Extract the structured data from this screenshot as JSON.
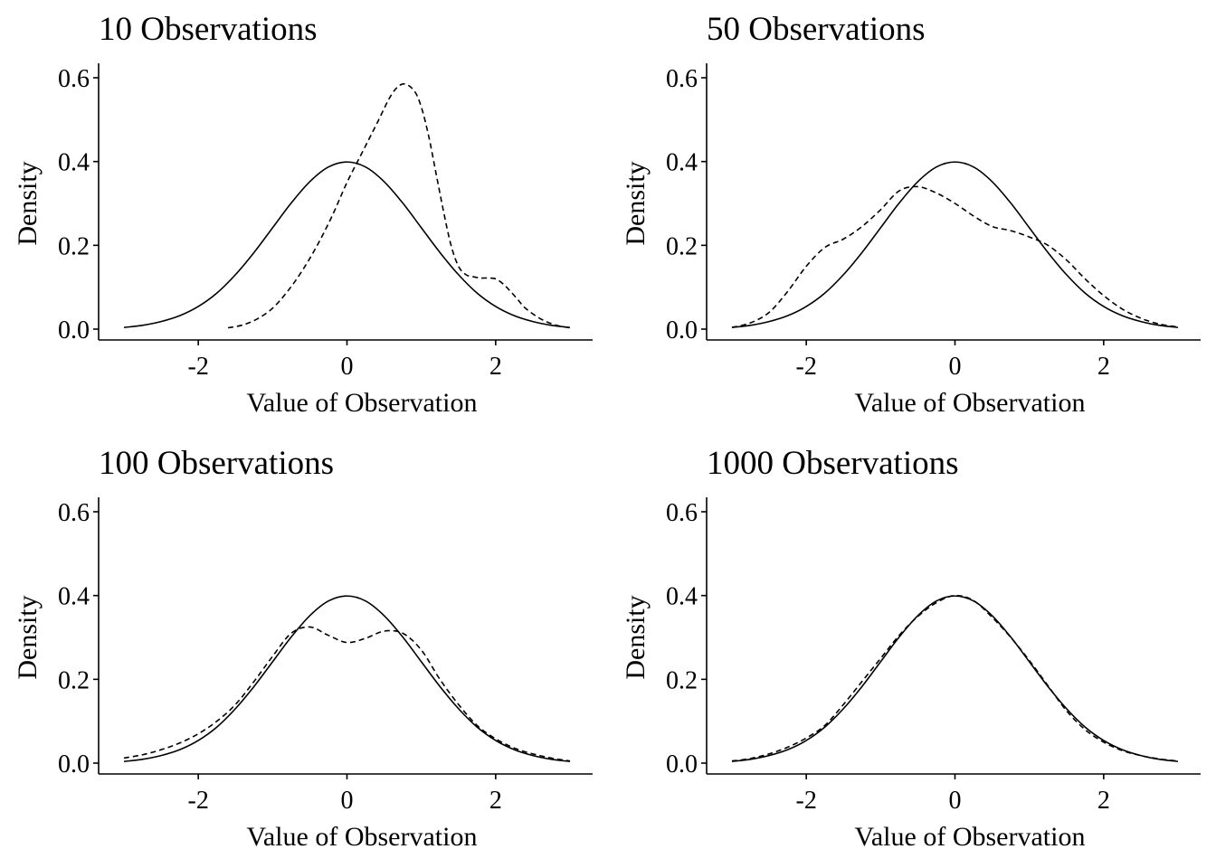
{
  "chart_data": [
    {
      "type": "line",
      "title": "10 Observations",
      "xlabel": "Value of Observation",
      "ylabel": "Density",
      "xlim": [
        -3,
        3
      ],
      "ylim": [
        0,
        0.6
      ],
      "xticks": [
        "-2",
        "0",
        "2"
      ],
      "yticks": [
        "0.0",
        "0.2",
        "0.4",
        "0.6"
      ],
      "grid": false,
      "series": [
        {
          "style": "solid",
          "x": [
            -3,
            -2.75,
            -2.5,
            -2.25,
            -2,
            -1.75,
            -1.5,
            -1.25,
            -1,
            -0.75,
            -0.5,
            -0.25,
            0,
            0.25,
            0.5,
            0.75,
            1,
            1.25,
            1.5,
            1.75,
            2,
            2.25,
            2.5,
            2.75,
            3
          ],
          "y": [
            0.004,
            0.009,
            0.018,
            0.032,
            0.054,
            0.086,
            0.13,
            0.183,
            0.242,
            0.301,
            0.352,
            0.387,
            0.399,
            0.387,
            0.352,
            0.301,
            0.242,
            0.183,
            0.13,
            0.086,
            0.054,
            0.032,
            0.018,
            0.009,
            0.004
          ]
        },
        {
          "style": "dashed",
          "x": [
            -1.6,
            -1.4,
            -1.2,
            -1,
            -0.8,
            -0.6,
            -0.4,
            -0.2,
            0,
            0.2,
            0.4,
            0.6,
            0.75,
            0.9,
            1,
            1.1,
            1.2,
            1.3,
            1.4,
            1.5,
            1.6,
            1.7,
            1.8,
            1.9,
            2,
            2.1,
            2.2,
            2.3,
            2.4,
            2.6,
            2.8,
            3
          ],
          "y": [
            0.003,
            0.01,
            0.025,
            0.05,
            0.09,
            0.14,
            0.2,
            0.27,
            0.35,
            0.42,
            0.49,
            0.56,
            0.585,
            0.57,
            0.53,
            0.46,
            0.37,
            0.28,
            0.2,
            0.15,
            0.13,
            0.125,
            0.122,
            0.122,
            0.12,
            0.108,
            0.09,
            0.07,
            0.05,
            0.025,
            0.01,
            0.003
          ]
        }
      ]
    },
    {
      "type": "line",
      "title": "50 Observations",
      "xlabel": "Value of Observation",
      "ylabel": "Density",
      "xlim": [
        -3,
        3
      ],
      "ylim": [
        0,
        0.6
      ],
      "xticks": [
        "-2",
        "0",
        "2"
      ],
      "yticks": [
        "0.0",
        "0.2",
        "0.4",
        "0.6"
      ],
      "grid": false,
      "series": [
        {
          "style": "solid",
          "x": [
            -3,
            -2.75,
            -2.5,
            -2.25,
            -2,
            -1.75,
            -1.5,
            -1.25,
            -1,
            -0.75,
            -0.5,
            -0.25,
            0,
            0.25,
            0.5,
            0.75,
            1,
            1.25,
            1.5,
            1.75,
            2,
            2.25,
            2.5,
            2.75,
            3
          ],
          "y": [
            0.004,
            0.009,
            0.018,
            0.032,
            0.054,
            0.086,
            0.13,
            0.183,
            0.242,
            0.301,
            0.352,
            0.387,
            0.399,
            0.387,
            0.352,
            0.301,
            0.242,
            0.183,
            0.13,
            0.086,
            0.054,
            0.032,
            0.018,
            0.009,
            0.004
          ]
        },
        {
          "style": "dashed",
          "x": [
            -3,
            -2.75,
            -2.5,
            -2.25,
            -2,
            -1.75,
            -1.5,
            -1.25,
            -1,
            -0.75,
            -0.5,
            -0.25,
            0,
            0.25,
            0.5,
            0.75,
            1,
            1.25,
            1.5,
            1.75,
            2,
            2.25,
            2.5,
            2.75,
            3
          ],
          "y": [
            0.004,
            0.015,
            0.04,
            0.09,
            0.15,
            0.195,
            0.215,
            0.245,
            0.285,
            0.33,
            0.34,
            0.325,
            0.3,
            0.27,
            0.245,
            0.235,
            0.22,
            0.2,
            0.165,
            0.12,
            0.08,
            0.048,
            0.026,
            0.012,
            0.005
          ]
        }
      ]
    },
    {
      "type": "line",
      "title": "100 Observations",
      "xlabel": "Value of Observation",
      "ylabel": "Density",
      "xlim": [
        -3,
        3
      ],
      "ylim": [
        0,
        0.6
      ],
      "xticks": [
        "-2",
        "0",
        "2"
      ],
      "yticks": [
        "0.0",
        "0.2",
        "0.4",
        "0.6"
      ],
      "grid": false,
      "series": [
        {
          "style": "solid",
          "x": [
            -3,
            -2.75,
            -2.5,
            -2.25,
            -2,
            -1.75,
            -1.5,
            -1.25,
            -1,
            -0.75,
            -0.5,
            -0.25,
            0,
            0.25,
            0.5,
            0.75,
            1,
            1.25,
            1.5,
            1.75,
            2,
            2.25,
            2.5,
            2.75,
            3
          ],
          "y": [
            0.004,
            0.009,
            0.018,
            0.032,
            0.054,
            0.086,
            0.13,
            0.183,
            0.242,
            0.301,
            0.352,
            0.387,
            0.399,
            0.387,
            0.352,
            0.301,
            0.242,
            0.183,
            0.13,
            0.086,
            0.054,
            0.032,
            0.018,
            0.009,
            0.004
          ]
        },
        {
          "style": "dashed",
          "x": [
            -3,
            -2.75,
            -2.5,
            -2.25,
            -2,
            -1.75,
            -1.5,
            -1.25,
            -1,
            -0.75,
            -0.5,
            -0.25,
            0,
            0.25,
            0.5,
            0.75,
            1,
            1.25,
            1.5,
            1.75,
            2,
            2.25,
            2.5,
            2.75,
            3
          ],
          "y": [
            0.012,
            0.02,
            0.032,
            0.048,
            0.07,
            0.1,
            0.14,
            0.195,
            0.255,
            0.31,
            0.325,
            0.305,
            0.288,
            0.298,
            0.315,
            0.31,
            0.27,
            0.2,
            0.14,
            0.09,
            0.058,
            0.036,
            0.022,
            0.012,
            0.005
          ]
        }
      ]
    },
    {
      "type": "line",
      "title": "1000 Observations",
      "xlabel": "Value of Observation",
      "ylabel": "Density",
      "xlim": [
        -3,
        3
      ],
      "ylim": [
        0,
        0.6
      ],
      "xticks": [
        "-2",
        "0",
        "2"
      ],
      "yticks": [
        "0.0",
        "0.2",
        "0.4",
        "0.6"
      ],
      "grid": false,
      "series": [
        {
          "style": "solid",
          "x": [
            -3,
            -2.75,
            -2.5,
            -2.25,
            -2,
            -1.75,
            -1.5,
            -1.25,
            -1,
            -0.75,
            -0.5,
            -0.25,
            0,
            0.25,
            0.5,
            0.75,
            1,
            1.25,
            1.5,
            1.75,
            2,
            2.25,
            2.5,
            2.75,
            3
          ],
          "y": [
            0.004,
            0.009,
            0.018,
            0.032,
            0.054,
            0.086,
            0.13,
            0.183,
            0.242,
            0.301,
            0.352,
            0.387,
            0.399,
            0.387,
            0.352,
            0.301,
            0.242,
            0.183,
            0.13,
            0.086,
            0.054,
            0.032,
            0.018,
            0.009,
            0.004
          ]
        },
        {
          "style": "dashed",
          "x": [
            -3,
            -2.75,
            -2.5,
            -2.25,
            -2,
            -1.75,
            -1.5,
            -1.25,
            -1,
            -0.75,
            -0.5,
            -0.25,
            0,
            0.25,
            0.5,
            0.75,
            1,
            1.25,
            1.5,
            1.75,
            2,
            2.25,
            2.5,
            2.75,
            3
          ],
          "y": [
            0.005,
            0.011,
            0.022,
            0.038,
            0.06,
            0.09,
            0.14,
            0.195,
            0.25,
            0.305,
            0.35,
            0.383,
            0.4,
            0.388,
            0.348,
            0.3,
            0.245,
            0.185,
            0.125,
            0.08,
            0.05,
            0.03,
            0.018,
            0.01,
            0.005
          ]
        }
      ]
    }
  ]
}
